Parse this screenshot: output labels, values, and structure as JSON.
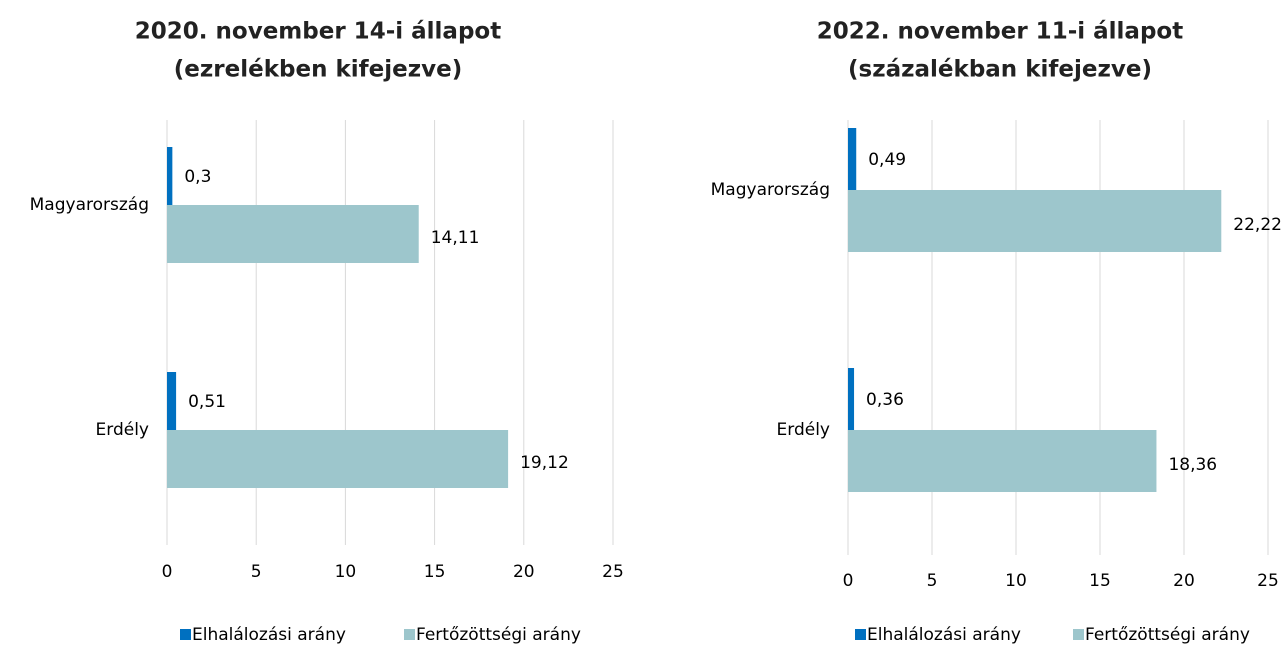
{
  "chart_data": [
    {
      "type": "bar",
      "orientation": "horizontal",
      "title": "2020. november 14-i állapot",
      "subtitle": "(ezrelékben kifejezve)",
      "categories": [
        "Magyarország",
        "Erdély"
      ],
      "series": [
        {
          "name": "Elhalálozási arány",
          "color": "#0070c0",
          "values": [
            0.3,
            0.51
          ],
          "value_labels": [
            "0,3",
            "0,51"
          ]
        },
        {
          "name": "Fertőzöttségi arány",
          "color": "#9dc6cc",
          "values": [
            14.11,
            19.12
          ],
          "value_labels": [
            "14,11",
            "19,12"
          ]
        }
      ],
      "xlim": [
        0,
        25
      ],
      "xticks": [
        0,
        5,
        10,
        15,
        20,
        25
      ],
      "grid": true,
      "legend": "bottom"
    },
    {
      "type": "bar",
      "orientation": "horizontal",
      "title": "2022. november 11-i állapot",
      "subtitle": "(százalékban kifejezve)",
      "categories": [
        "Magyarország",
        "Erdély"
      ],
      "series": [
        {
          "name": "Elhalálozási arány",
          "color": "#0070c0",
          "values": [
            0.49,
            0.36
          ],
          "value_labels": [
            "0,49",
            "0,36"
          ]
        },
        {
          "name": "Fertőzöttségi arány",
          "color": "#9dc6cc",
          "values": [
            22.22,
            18.36
          ],
          "value_labels": [
            "22,22",
            "18,36"
          ]
        }
      ],
      "xlim": [
        0,
        25
      ],
      "xticks": [
        0,
        5,
        10,
        15,
        20,
        25
      ],
      "grid": true,
      "legend": "bottom"
    }
  ]
}
